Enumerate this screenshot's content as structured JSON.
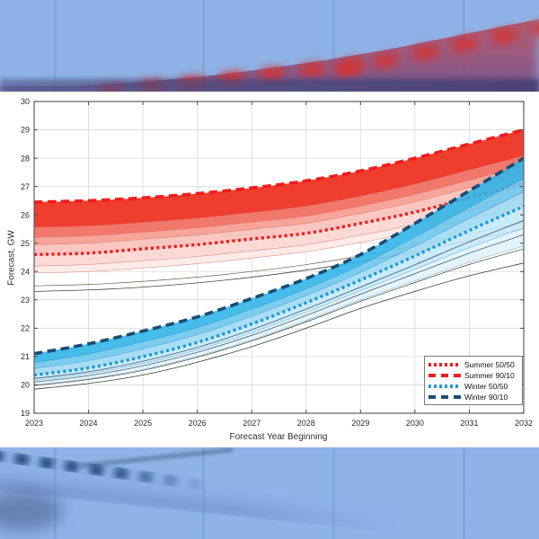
{
  "page": {
    "background_color": "#93b5e7",
    "panel_color": "#ffffff"
  },
  "chart_data": {
    "type": "line",
    "title": "",
    "xlabel": "Forecast Year Beginning",
    "ylabel": "Forecast, GW",
    "xlim": [
      2023,
      2032
    ],
    "ylim": [
      19,
      30
    ],
    "x": [
      2023,
      2024,
      2025,
      2026,
      2027,
      2028,
      2029,
      2030,
      2031,
      2032
    ],
    "xticks": [
      2023,
      2024,
      2025,
      2026,
      2027,
      2028,
      2029,
      2030,
      2031,
      2032
    ],
    "yticks": [
      19,
      20,
      21,
      22,
      23,
      24,
      25,
      26,
      27,
      28,
      29,
      30
    ],
    "grid": true,
    "legend_position": "bottom-right",
    "series": [
      {
        "name": "Summer 50/50",
        "style": "dotted",
        "color": "#ee1d1d",
        "width": 3.4,
        "values": [
          24.6,
          24.65,
          24.8,
          24.95,
          25.15,
          25.35,
          25.7,
          26.1,
          26.6,
          27.1
        ]
      },
      {
        "name": "Summer 90/10",
        "style": "dashed",
        "color": "#ee1d1d",
        "width": 3.6,
        "values": [
          26.45,
          26.5,
          26.6,
          26.75,
          26.95,
          27.2,
          27.55,
          28.0,
          28.5,
          29.0
        ]
      },
      {
        "name": "Winter 50/50",
        "style": "dotted",
        "color": "#2196d5",
        "width": 3.4,
        "values": [
          20.35,
          20.6,
          21.0,
          21.5,
          22.15,
          22.9,
          23.7,
          24.55,
          25.45,
          26.3
        ]
      },
      {
        "name": "Winter 90/10",
        "style": "dashed",
        "color": "#1c4c72",
        "width": 3.6,
        "values": [
          21.1,
          21.45,
          21.9,
          22.4,
          23.05,
          23.75,
          24.6,
          25.7,
          26.85,
          28.0
        ]
      }
    ],
    "fans": [
      {
        "name": "summer-fan",
        "median": 0,
        "p90": 1,
        "opacity": 1,
        "p_low": [
          23.3,
          23.35,
          23.45,
          23.6,
          23.8,
          24.05,
          24.35,
          24.7,
          25.1,
          25.5
        ],
        "bands_up": [
          {
            "from": 1.0,
            "to": 0.52,
            "fill": "#ef3d2e"
          },
          {
            "from": 0.52,
            "to": 0.33,
            "fill": "#f3786c"
          },
          {
            "from": 0.33,
            "to": 0.19,
            "fill": "#f7a49b"
          },
          {
            "from": 0.19,
            "to": 0.0,
            "fill": "#fac6bf"
          }
        ],
        "bands_down": [
          {
            "from": 0.0,
            "to": 0.31,
            "fill": "#fbd9d4"
          },
          {
            "from": 0.31,
            "to": 0.5,
            "fill": "#fdebe8"
          }
        ],
        "edges_up": [
          0.52,
          0.33,
          0.19
        ],
        "edges_down": [
          0.31,
          0.5
        ],
        "edge_color": "rgba(190,75,65,0.55)",
        "curves_down": [
          {
            "frac": 0.85,
            "color": "#6e5a55",
            "width": 0.7
          },
          {
            "frac": 1.0,
            "color": "#454545",
            "width": 0.8
          }
        ]
      },
      {
        "name": "winter-fan",
        "median": 2,
        "p90": 3,
        "opacity": 0.88,
        "p_low": [
          19.85,
          20.05,
          20.35,
          20.8,
          21.35,
          22.0,
          22.7,
          23.3,
          23.85,
          24.3
        ],
        "bands_up": [
          {
            "from": 1.0,
            "to": 0.58,
            "fill": "#2cb3e8"
          },
          {
            "from": 0.58,
            "to": 0.3,
            "fill": "#66c7ee"
          },
          {
            "from": 0.3,
            "to": 0.0,
            "fill": "#9cd9f4"
          }
        ],
        "bands_down": [
          {
            "from": 0.0,
            "to": 0.38,
            "fill": "#c3e8f8"
          },
          {
            "from": 0.38,
            "to": 0.7,
            "fill": "#e0f3fb"
          }
        ],
        "edges_up": [
          0.58,
          0.3
        ],
        "edges_down": [
          0.38,
          0.7
        ],
        "edge_color": "rgba(45,115,165,0.55)",
        "curves_down": [
          {
            "frac": 0.25,
            "color": "#2a4a63",
            "width": 0.7
          },
          {
            "frac": 0.5,
            "color": "#2a4a63",
            "width": 0.7
          },
          {
            "frac": 0.75,
            "color": "#3a3a3a",
            "width": 0.7
          },
          {
            "frac": 1.0,
            "color": "#3a3a3a",
            "width": 0.8
          }
        ]
      }
    ],
    "axis": {
      "grid_color": "#dadada",
      "border_color": "#5f5f5f",
      "tick_color": "#4a4a4a",
      "tick_label_color": "#2b2b2b"
    }
  },
  "legend": {
    "items": [
      {
        "label": "Summer 50/50"
      },
      {
        "label": "Summer 90/10"
      },
      {
        "label": "Winter 50/50"
      },
      {
        "label": "Winter 90/10"
      }
    ]
  }
}
